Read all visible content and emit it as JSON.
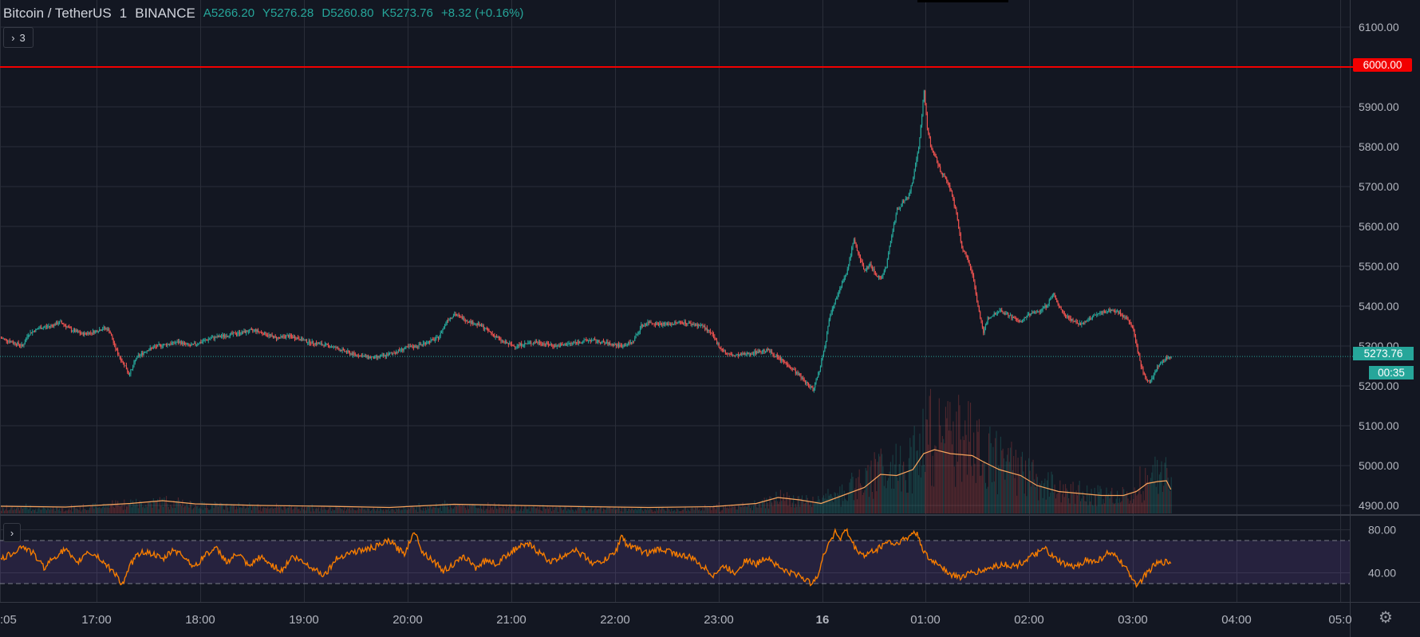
{
  "legend": {
    "symbol": "Bitcoin / TetherUS",
    "interval": "1",
    "exchange": "BINANCE",
    "open": "A5266.20",
    "high": "Y5276.28",
    "low": "D5260.80",
    "close": "K5273.76",
    "change": "+8.32 (+0.16%)"
  },
  "indicator_toggle": {
    "arrow": "›",
    "count": "3"
  },
  "rsi_toggle": {
    "arrow": "›"
  },
  "price_axis": {
    "ticks": [
      "6100.00",
      "6000.00",
      "5900.00",
      "5800.00",
      "5700.00",
      "5600.00",
      "5500.00",
      "5400.00",
      "5300.00",
      "5200.00",
      "5100.00",
      "5000.00",
      "4900.00"
    ],
    "alert_line_label": "6000.00",
    "last_price_label": "5273.76",
    "countdown_label": "00:35"
  },
  "rsi_axis": {
    "ticks": [
      "80.00",
      "40.00"
    ]
  },
  "time_axis": {
    "labels": [
      ":05",
      "17:00",
      "18:00",
      "19:00",
      "20:00",
      "21:00",
      "22:00",
      "23:00",
      "16",
      "01:00",
      "02:00",
      "03:00",
      "04:00",
      "05:0"
    ]
  },
  "colors": {
    "background": "#131722",
    "up": "#26a69a",
    "down": "#ef5350",
    "alert_line": "#f20000",
    "volume_ma": "#f7a35c",
    "rsi_line": "#f57c00",
    "rsi_band": "#7e57c2",
    "grid": "#2a2e39"
  },
  "icons": {
    "settings": "gear-icon"
  },
  "chart_data": {
    "type": "candlestick",
    "title": "Bitcoin / TetherUS",
    "x_range": [
      "16:05",
      "05:00"
    ],
    "y_range": [
      4880,
      6140
    ],
    "alert_level": 6000,
    "last_price": 5273.76,
    "price_path": [
      [
        0,
        5320
      ],
      [
        10,
        5310
      ],
      [
        20,
        5300
      ],
      [
        25,
        5330
      ],
      [
        35,
        5345
      ],
      [
        45,
        5350
      ],
      [
        55,
        5360
      ],
      [
        65,
        5340
      ],
      [
        75,
        5330
      ],
      [
        85,
        5335
      ],
      [
        95,
        5345
      ],
      [
        100,
        5340
      ],
      [
        105,
        5300
      ],
      [
        110,
        5270
      ],
      [
        115,
        5250
      ],
      [
        118,
        5230
      ],
      [
        121,
        5240
      ],
      [
        125,
        5270
      ],
      [
        135,
        5290
      ],
      [
        145,
        5300
      ],
      [
        155,
        5305
      ],
      [
        165,
        5310
      ],
      [
        175,
        5300
      ],
      [
        185,
        5310
      ],
      [
        195,
        5320
      ],
      [
        205,
        5325
      ],
      [
        215,
        5330
      ],
      [
        225,
        5335
      ],
      [
        235,
        5340
      ],
      [
        245,
        5330
      ],
      [
        255,
        5320
      ],
      [
        265,
        5325
      ],
      [
        275,
        5320
      ],
      [
        285,
        5310
      ],
      [
        295,
        5305
      ],
      [
        305,
        5300
      ],
      [
        315,
        5290
      ],
      [
        325,
        5280
      ],
      [
        335,
        5275
      ],
      [
        345,
        5270
      ],
      [
        355,
        5275
      ],
      [
        365,
        5285
      ],
      [
        375,
        5295
      ],
      [
        385,
        5300
      ],
      [
        395,
        5310
      ],
      [
        405,
        5320
      ],
      [
        413,
        5365
      ],
      [
        420,
        5380
      ],
      [
        427,
        5370
      ],
      [
        435,
        5360
      ],
      [
        445,
        5350
      ],
      [
        455,
        5330
      ],
      [
        465,
        5310
      ],
      [
        475,
        5300
      ],
      [
        485,
        5305
      ],
      [
        495,
        5310
      ],
      [
        505,
        5305
      ],
      [
        515,
        5300
      ],
      [
        525,
        5305
      ],
      [
        535,
        5310
      ],
      [
        545,
        5315
      ],
      [
        555,
        5310
      ],
      [
        565,
        5305
      ],
      [
        575,
        5300
      ],
      [
        585,
        5310
      ],
      [
        593,
        5350
      ],
      [
        600,
        5360
      ],
      [
        610,
        5355
      ],
      [
        620,
        5355
      ],
      [
        630,
        5360
      ],
      [
        640,
        5355
      ],
      [
        650,
        5350
      ],
      [
        658,
        5330
      ],
      [
        665,
        5300
      ],
      [
        672,
        5280
      ],
      [
        680,
        5275
      ],
      [
        690,
        5280
      ],
      [
        700,
        5285
      ],
      [
        710,
        5290
      ],
      [
        720,
        5270
      ],
      [
        730,
        5250
      ],
      [
        738,
        5230
      ],
      [
        745,
        5210
      ],
      [
        752,
        5190
      ],
      [
        758,
        5240
      ],
      [
        763,
        5300
      ],
      [
        768,
        5380
      ],
      [
        773,
        5420
      ],
      [
        778,
        5450
      ],
      [
        783,
        5480
      ],
      [
        787,
        5530
      ],
      [
        790,
        5570
      ],
      [
        795,
        5520
      ],
      [
        800,
        5490
      ],
      [
        805,
        5505
      ],
      [
        810,
        5480
      ],
      [
        815,
        5470
      ],
      [
        820,
        5500
      ],
      [
        825,
        5580
      ],
      [
        830,
        5640
      ],
      [
        835,
        5660
      ],
      [
        840,
        5670
      ],
      [
        845,
        5720
      ],
      [
        850,
        5800
      ],
      [
        853,
        5880
      ],
      [
        855,
        5940
      ],
      [
        858,
        5850
      ],
      [
        862,
        5790
      ],
      [
        866,
        5770
      ],
      [
        870,
        5740
      ],
      [
        875,
        5720
      ],
      [
        880,
        5690
      ],
      [
        885,
        5630
      ],
      [
        890,
        5550
      ],
      [
        895,
        5520
      ],
      [
        900,
        5480
      ],
      [
        905,
        5400
      ],
      [
        910,
        5330
      ],
      [
        914,
        5370
      ],
      [
        920,
        5380
      ],
      [
        925,
        5390
      ],
      [
        932,
        5380
      ],
      [
        938,
        5370
      ],
      [
        945,
        5360
      ],
      [
        952,
        5380
      ],
      [
        960,
        5385
      ],
      [
        968,
        5400
      ],
      [
        975,
        5430
      ],
      [
        980,
        5400
      ],
      [
        985,
        5380
      ],
      [
        990,
        5370
      ],
      [
        995,
        5360
      ],
      [
        1000,
        5355
      ],
      [
        1005,
        5360
      ],
      [
        1012,
        5375
      ],
      [
        1020,
        5385
      ],
      [
        1028,
        5390
      ],
      [
        1035,
        5385
      ],
      [
        1042,
        5370
      ],
      [
        1048,
        5350
      ],
      [
        1052,
        5300
      ],
      [
        1056,
        5250
      ],
      [
        1060,
        5220
      ],
      [
        1064,
        5210
      ],
      [
        1068,
        5230
      ],
      [
        1072,
        5250
      ],
      [
        1076,
        5260
      ],
      [
        1080,
        5270
      ],
      [
        1084,
        5275
      ]
    ],
    "volume_ma_path": [
      [
        0,
        4898
      ],
      [
        60,
        4896
      ],
      [
        120,
        4905
      ],
      [
        150,
        4912
      ],
      [
        180,
        4904
      ],
      [
        240,
        4900
      ],
      [
        300,
        4898
      ],
      [
        360,
        4895
      ],
      [
        420,
        4903
      ],
      [
        480,
        4900
      ],
      [
        540,
        4897
      ],
      [
        600,
        4895
      ],
      [
        660,
        4897
      ],
      [
        700,
        4905
      ],
      [
        720,
        4920
      ],
      [
        740,
        4914
      ],
      [
        760,
        4905
      ],
      [
        780,
        4925
      ],
      [
        800,
        4945
      ],
      [
        815,
        4978
      ],
      [
        830,
        4975
      ],
      [
        845,
        4990
      ],
      [
        855,
        5030
      ],
      [
        865,
        5040
      ],
      [
        880,
        5030
      ],
      [
        900,
        5025
      ],
      [
        910,
        5010
      ],
      [
        925,
        4990
      ],
      [
        945,
        4975
      ],
      [
        960,
        4950
      ],
      [
        980,
        4935
      ],
      [
        1000,
        4930
      ],
      [
        1020,
        4925
      ],
      [
        1040,
        4925
      ],
      [
        1052,
        4935
      ],
      [
        1062,
        4955
      ],
      [
        1072,
        4960
      ],
      [
        1080,
        4962
      ],
      [
        1084,
        4940
      ]
    ],
    "rsi_path": [
      [
        0,
        52
      ],
      [
        10,
        58
      ],
      [
        20,
        65
      ],
      [
        30,
        58
      ],
      [
        40,
        45
      ],
      [
        50,
        55
      ],
      [
        60,
        62
      ],
      [
        70,
        48
      ],
      [
        80,
        60
      ],
      [
        90,
        55
      ],
      [
        100,
        45
      ],
      [
        108,
        38
      ],
      [
        112,
        28
      ],
      [
        116,
        35
      ],
      [
        120,
        48
      ],
      [
        130,
        60
      ],
      [
        140,
        58
      ],
      [
        150,
        52
      ],
      [
        160,
        62
      ],
      [
        170,
        55
      ],
      [
        180,
        45
      ],
      [
        190,
        58
      ],
      [
        200,
        62
      ],
      [
        210,
        50
      ],
      [
        220,
        58
      ],
      [
        230,
        45
      ],
      [
        240,
        55
      ],
      [
        250,
        48
      ],
      [
        260,
        42
      ],
      [
        270,
        55
      ],
      [
        280,
        50
      ],
      [
        290,
        44
      ],
      [
        300,
        38
      ],
      [
        310,
        52
      ],
      [
        320,
        58
      ],
      [
        330,
        60
      ],
      [
        340,
        62
      ],
      [
        350,
        65
      ],
      [
        360,
        70
      ],
      [
        368,
        62
      ],
      [
        374,
        58
      ],
      [
        380,
        72
      ],
      [
        385,
        78
      ],
      [
        390,
        60
      ],
      [
        400,
        52
      ],
      [
        410,
        42
      ],
      [
        420,
        48
      ],
      [
        430,
        55
      ],
      [
        440,
        45
      ],
      [
        450,
        52
      ],
      [
        460,
        48
      ],
      [
        470,
        58
      ],
      [
        480,
        64
      ],
      [
        490,
        66
      ],
      [
        500,
        58
      ],
      [
        510,
        50
      ],
      [
        520,
        55
      ],
      [
        530,
        62
      ],
      [
        540,
        56
      ],
      [
        550,
        48
      ],
      [
        560,
        52
      ],
      [
        570,
        60
      ],
      [
        575,
        75
      ],
      [
        580,
        66
      ],
      [
        590,
        62
      ],
      [
        600,
        58
      ],
      [
        610,
        62
      ],
      [
        620,
        60
      ],
      [
        630,
        56
      ],
      [
        640,
        54
      ],
      [
        650,
        46
      ],
      [
        660,
        38
      ],
      [
        670,
        46
      ],
      [
        680,
        40
      ],
      [
        690,
        52
      ],
      [
        700,
        48
      ],
      [
        710,
        55
      ],
      [
        720,
        46
      ],
      [
        730,
        40
      ],
      [
        740,
        38
      ],
      [
        750,
        30
      ],
      [
        758,
        40
      ],
      [
        763,
        58
      ],
      [
        768,
        70
      ],
      [
        773,
        78
      ],
      [
        778,
        72
      ],
      [
        783,
        80
      ],
      [
        787,
        72
      ],
      [
        792,
        62
      ],
      [
        800,
        56
      ],
      [
        808,
        60
      ],
      [
        815,
        64
      ],
      [
        822,
        70
      ],
      [
        828,
        66
      ],
      [
        834,
        70
      ],
      [
        840,
        72
      ],
      [
        846,
        78
      ],
      [
        850,
        74
      ],
      [
        855,
        60
      ],
      [
        860,
        52
      ],
      [
        870,
        48
      ],
      [
        880,
        38
      ],
      [
        890,
        36
      ],
      [
        900,
        40
      ],
      [
        910,
        42
      ],
      [
        920,
        46
      ],
      [
        930,
        48
      ],
      [
        940,
        46
      ],
      [
        950,
        52
      ],
      [
        960,
        58
      ],
      [
        968,
        62
      ],
      [
        975,
        54
      ],
      [
        985,
        48
      ],
      [
        995,
        45
      ],
      [
        1005,
        52
      ],
      [
        1015,
        50
      ],
      [
        1025,
        58
      ],
      [
        1035,
        54
      ],
      [
        1042,
        44
      ],
      [
        1048,
        36
      ],
      [
        1052,
        30
      ],
      [
        1056,
        32
      ],
      [
        1062,
        40
      ],
      [
        1070,
        48
      ],
      [
        1078,
        50
      ],
      [
        1084,
        50
      ]
    ]
  }
}
